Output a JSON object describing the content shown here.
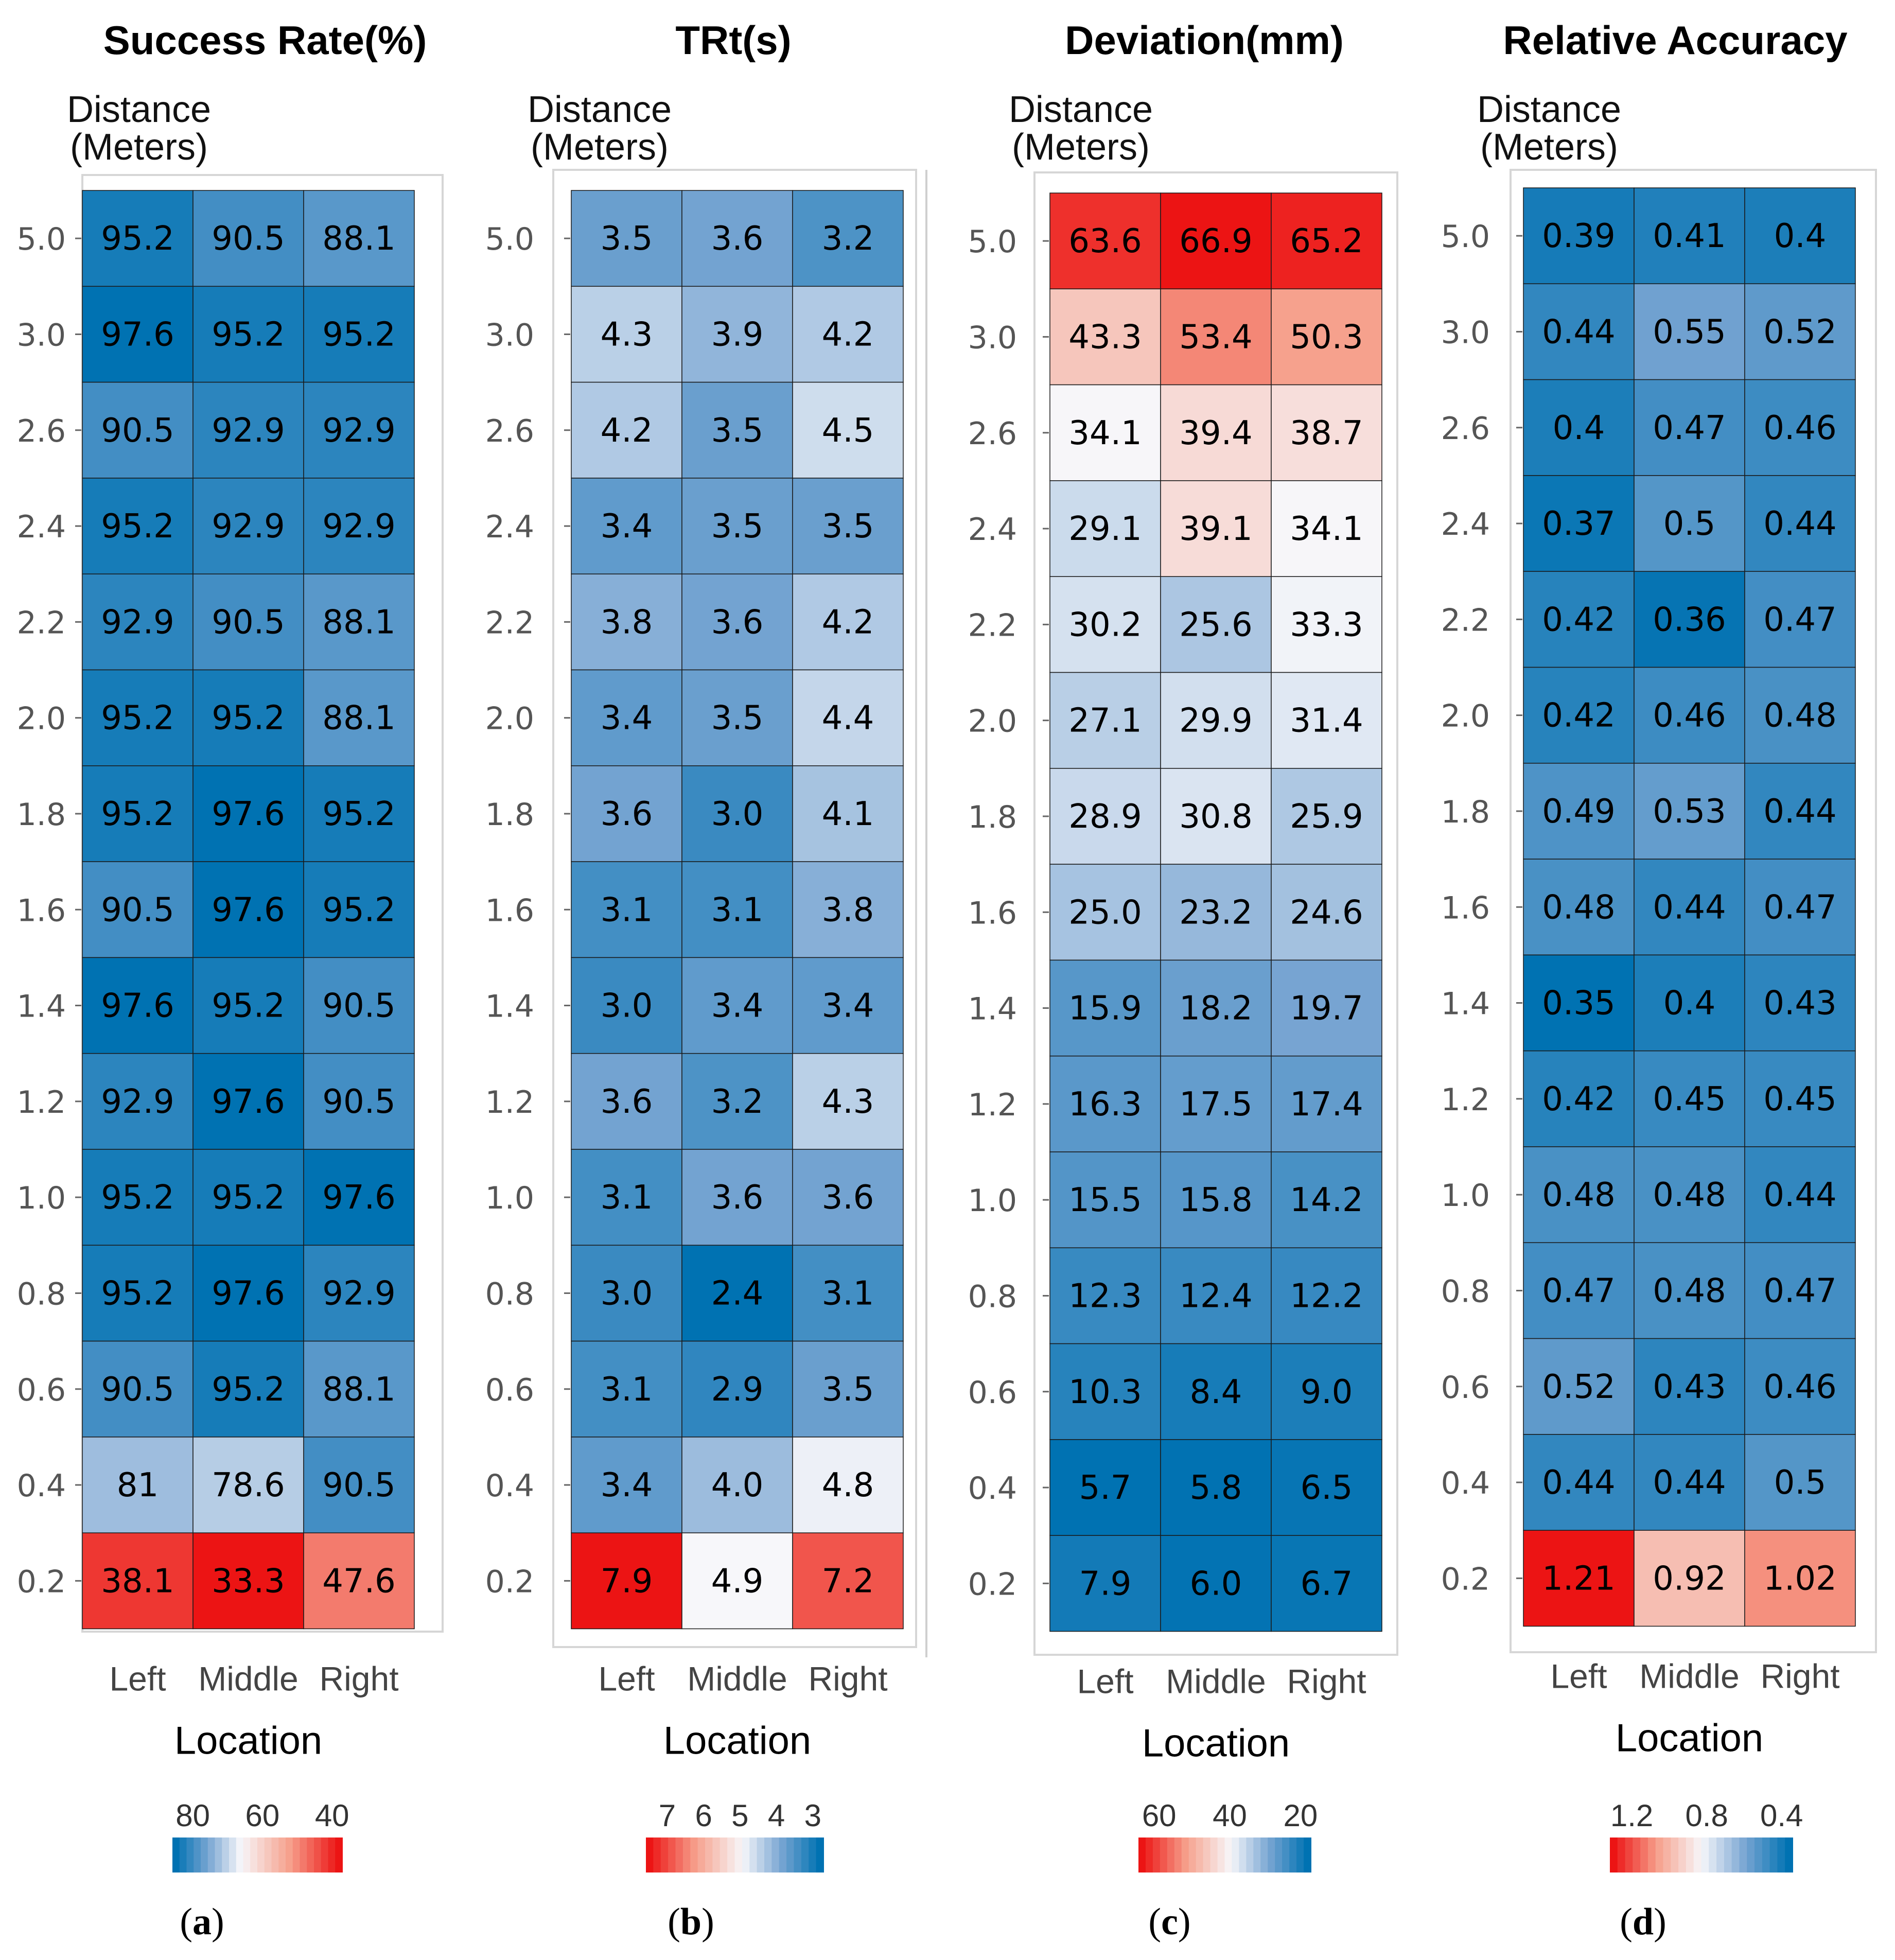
{
  "chart_data": [
    {
      "type": "heatmap",
      "panel_label": "a",
      "title": "Success Rate(%)",
      "ylabel_lines": [
        "Distance",
        "(Meters)"
      ],
      "xlabel": "Location",
      "x_categories": [
        "Left",
        "Middle",
        "Right"
      ],
      "y_categories": [
        "5.0",
        "3.0",
        "2.6",
        "2.4",
        "2.2",
        "2.0",
        "1.8",
        "1.6",
        "1.4",
        "1.2",
        "1.0",
        "0.8",
        "0.6",
        "0.4",
        "0.2"
      ],
      "values": [
        [
          "95.2",
          "90.5",
          "88.1"
        ],
        [
          "97.6",
          "95.2",
          "95.2"
        ],
        [
          "90.5",
          "92.9",
          "92.9"
        ],
        [
          "95.2",
          "92.9",
          "92.9"
        ],
        [
          "92.9",
          "90.5",
          "88.1"
        ],
        [
          "95.2",
          "95.2",
          "88.1"
        ],
        [
          "95.2",
          "97.6",
          "95.2"
        ],
        [
          "90.5",
          "97.6",
          "95.2"
        ],
        [
          "97.6",
          "95.2",
          "90.5"
        ],
        [
          "92.9",
          "97.6",
          "90.5"
        ],
        [
          "95.2",
          "95.2",
          "97.6"
        ],
        [
          "95.2",
          "97.6",
          "92.9"
        ],
        [
          "90.5",
          "95.2",
          "88.1"
        ],
        [
          "81",
          "78.6",
          "90.5"
        ],
        [
          "38.1",
          "33.3",
          "47.6"
        ]
      ],
      "color_scale": {
        "blue_at": 97.6,
        "white_at": 72,
        "red_at": 33.3
      },
      "legend_ticks": [
        "80",
        "60",
        "40"
      ]
    },
    {
      "type": "heatmap",
      "panel_label": "b",
      "title": "TRt(s)",
      "ylabel_lines": [
        "Distance",
        "(Meters)"
      ],
      "xlabel": "Location",
      "x_categories": [
        "Left",
        "Middle",
        "Right"
      ],
      "y_categories": [
        "5.0",
        "3.0",
        "2.6",
        "2.4",
        "2.2",
        "2.0",
        "1.8",
        "1.6",
        "1.4",
        "1.2",
        "1.0",
        "0.8",
        "0.6",
        "0.4",
        "0.2"
      ],
      "values": [
        [
          "3.5",
          "3.6",
          "3.2"
        ],
        [
          "4.3",
          "3.9",
          "4.2"
        ],
        [
          "4.2",
          "3.5",
          "4.5"
        ],
        [
          "3.4",
          "3.5",
          "3.5"
        ],
        [
          "3.8",
          "3.6",
          "4.2"
        ],
        [
          "3.4",
          "3.5",
          "4.4"
        ],
        [
          "3.6",
          "3.0",
          "4.1"
        ],
        [
          "3.1",
          "3.1",
          "3.8"
        ],
        [
          "3.0",
          "3.4",
          "3.4"
        ],
        [
          "3.6",
          "3.2",
          "4.3"
        ],
        [
          "3.1",
          "3.6",
          "3.6"
        ],
        [
          "3.0",
          "2.4",
          "3.1"
        ],
        [
          "3.1",
          "2.9",
          "3.5"
        ],
        [
          "3.4",
          "4.0",
          "4.8"
        ],
        [
          "7.9",
          "4.9",
          "7.2"
        ]
      ],
      "color_scale": {
        "blue_at": 2.4,
        "white_at": 4.9,
        "red_at": 7.9
      },
      "legend_ticks": [
        "7",
        "6",
        "5",
        "4",
        "3"
      ]
    },
    {
      "type": "heatmap",
      "panel_label": "c",
      "title": "Deviation(mm)",
      "ylabel_lines": [
        "Distance",
        "(Meters)"
      ],
      "xlabel": "Location",
      "x_categories": [
        "Left",
        "Middle",
        "Right"
      ],
      "y_categories": [
        "5.0",
        "3.0",
        "2.6",
        "2.4",
        "2.2",
        "2.0",
        "1.8",
        "1.6",
        "1.4",
        "1.2",
        "1.0",
        "0.8",
        "0.6",
        "0.4",
        "0.2"
      ],
      "values": [
        [
          "63.6",
          "66.9",
          "65.2"
        ],
        [
          "43.3",
          "53.4",
          "50.3"
        ],
        [
          "34.1",
          "39.4",
          "38.7"
        ],
        [
          "29.1",
          "39.1",
          "34.1"
        ],
        [
          "30.2",
          "25.6",
          "33.3"
        ],
        [
          "27.1",
          "29.9",
          "31.4"
        ],
        [
          "28.9",
          "30.8",
          "25.9"
        ],
        [
          "25.0",
          "23.2",
          "24.6"
        ],
        [
          "15.9",
          "18.2",
          "19.7"
        ],
        [
          "16.3",
          "17.5",
          "17.4"
        ],
        [
          "15.5",
          "15.8",
          "14.2"
        ],
        [
          "12.3",
          "12.4",
          "12.2"
        ],
        [
          "10.3",
          "8.4",
          "9.0"
        ],
        [
          "5.7",
          "5.8",
          "6.5"
        ],
        [
          "7.9",
          "6.0",
          "6.7"
        ]
      ],
      "color_scale": {
        "blue_at": 5.7,
        "white_at": 34,
        "red_at": 66.9
      },
      "legend_ticks": [
        "60",
        "40",
        "20"
      ]
    },
    {
      "type": "heatmap",
      "panel_label": "d",
      "title": "Relative Accuracy",
      "ylabel_lines": [
        "Distance",
        "(Meters)"
      ],
      "xlabel": "Location",
      "x_categories": [
        "Left",
        "Middle",
        "Right"
      ],
      "y_categories": [
        "5.0",
        "3.0",
        "2.6",
        "2.4",
        "2.2",
        "2.0",
        "1.8",
        "1.6",
        "1.4",
        "1.2",
        "1.0",
        "0.8",
        "0.6",
        "0.4",
        "0.2"
      ],
      "values": [
        [
          "0.39",
          "0.41",
          "0.4"
        ],
        [
          "0.44",
          "0.55",
          "0.52"
        ],
        [
          "0.4",
          "0.47",
          "0.46"
        ],
        [
          "0.37",
          "0.5",
          "0.44"
        ],
        [
          "0.42",
          "0.36",
          "0.47"
        ],
        [
          "0.42",
          "0.46",
          "0.48"
        ],
        [
          "0.49",
          "0.53",
          "0.44"
        ],
        [
          "0.48",
          "0.44",
          "0.47"
        ],
        [
          "0.35",
          "0.4",
          "0.43"
        ],
        [
          "0.42",
          "0.45",
          "0.45"
        ],
        [
          "0.48",
          "0.48",
          "0.44"
        ],
        [
          "0.47",
          "0.48",
          "0.47"
        ],
        [
          "0.52",
          "0.43",
          "0.46"
        ],
        [
          "0.44",
          "0.44",
          "0.5"
        ],
        [
          "1.21",
          "0.92",
          "1.02"
        ]
      ],
      "color_scale": {
        "blue_at": 0.35,
        "white_at": 0.78,
        "red_at": 1.21
      },
      "legend_ticks": [
        "1.2",
        "0.8",
        "0.4"
      ]
    }
  ]
}
